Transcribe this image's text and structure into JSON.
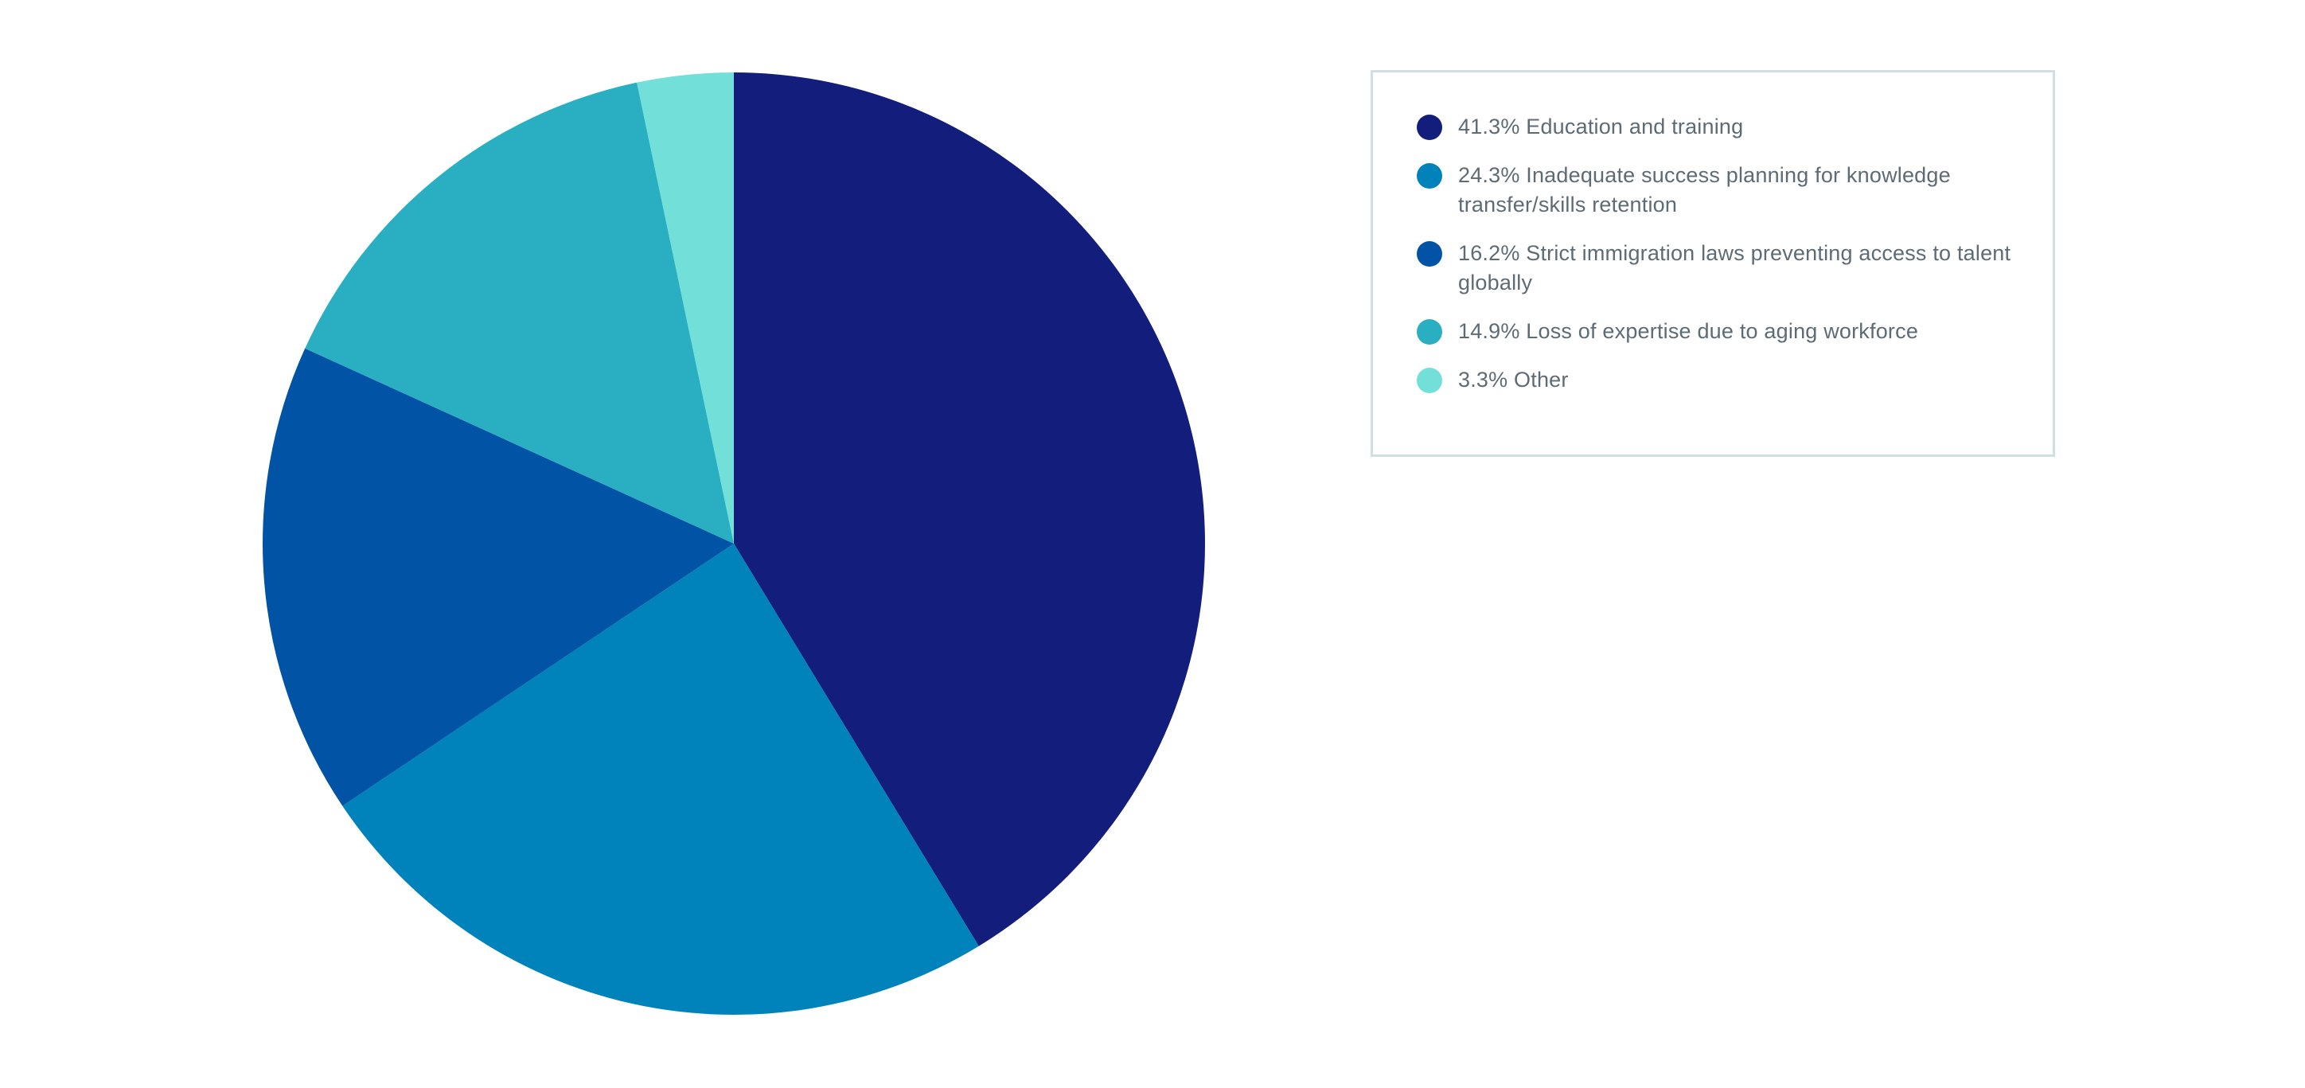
{
  "chart_data": {
    "type": "pie",
    "title": "",
    "start_angle": "12 o'clock",
    "direction": "clockwise",
    "slices": [
      {
        "label": "41.3% Education and training",
        "name": "Education and training",
        "value": 41.3,
        "color": "#121d7c"
      },
      {
        "label": "24.3% Inadequate success planning for knowledge transfer/skills retention",
        "name": "Inadequate success planning for knowledge transfer/skills retention",
        "value": 24.3,
        "color": "#0083bb"
      },
      {
        "label": "16.2% Strict immigration laws preventing access to talent globally",
        "name": "Strict immigration laws preventing access to talent globally",
        "value": 16.2,
        "color": "#0053a5"
      },
      {
        "label": "14.9% Loss of expertise due to aging workforce",
        "name": "Loss of expertise due to aging workforce",
        "value": 14.9,
        "color": "#2aafc2"
      },
      {
        "label": "3.3% Other",
        "name": "Other",
        "value": 3.3,
        "color": "#72e0d8"
      }
    ],
    "legend_position": "right"
  },
  "colors": {
    "legend_border": "#cfe0e3",
    "legend_text": "#5d6b75",
    "background": "#ffffff"
  }
}
